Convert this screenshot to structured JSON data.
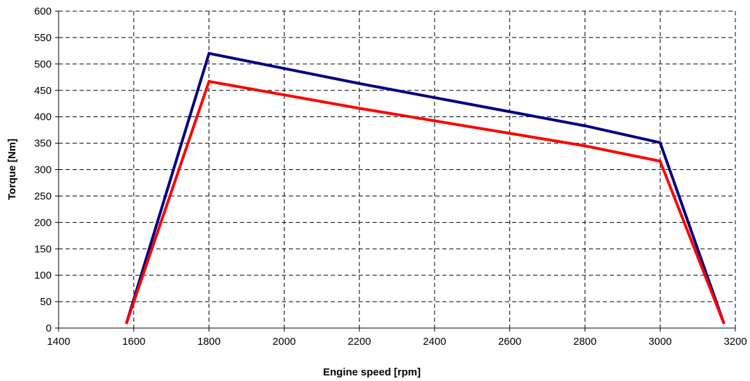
{
  "chart_data": {
    "type": "line",
    "title": "",
    "xlabel": "Engine speed [rpm]",
    "ylabel": "Torque [Nm]",
    "xlim": [
      1400,
      3200
    ],
    "ylim": [
      0,
      600
    ],
    "x_ticks": [
      1400,
      1600,
      1800,
      2000,
      2200,
      2400,
      2600,
      2800,
      3000,
      3200
    ],
    "y_ticks": [
      0,
      50,
      100,
      150,
      200,
      250,
      300,
      350,
      400,
      450,
      500,
      550,
      600
    ],
    "grid": true,
    "legend": "none",
    "series": [
      {
        "color": "#000080",
        "x": [
          1580,
          1800,
          2200,
          2800,
          3000,
          3170
        ],
        "y": [
          8,
          520,
          463,
          383,
          351,
          8
        ]
      },
      {
        "color": "#ff0000",
        "x": [
          1580,
          1800,
          2200,
          2800,
          3000,
          3170
        ],
        "y": [
          8,
          467,
          416,
          345,
          316,
          8
        ]
      }
    ]
  }
}
